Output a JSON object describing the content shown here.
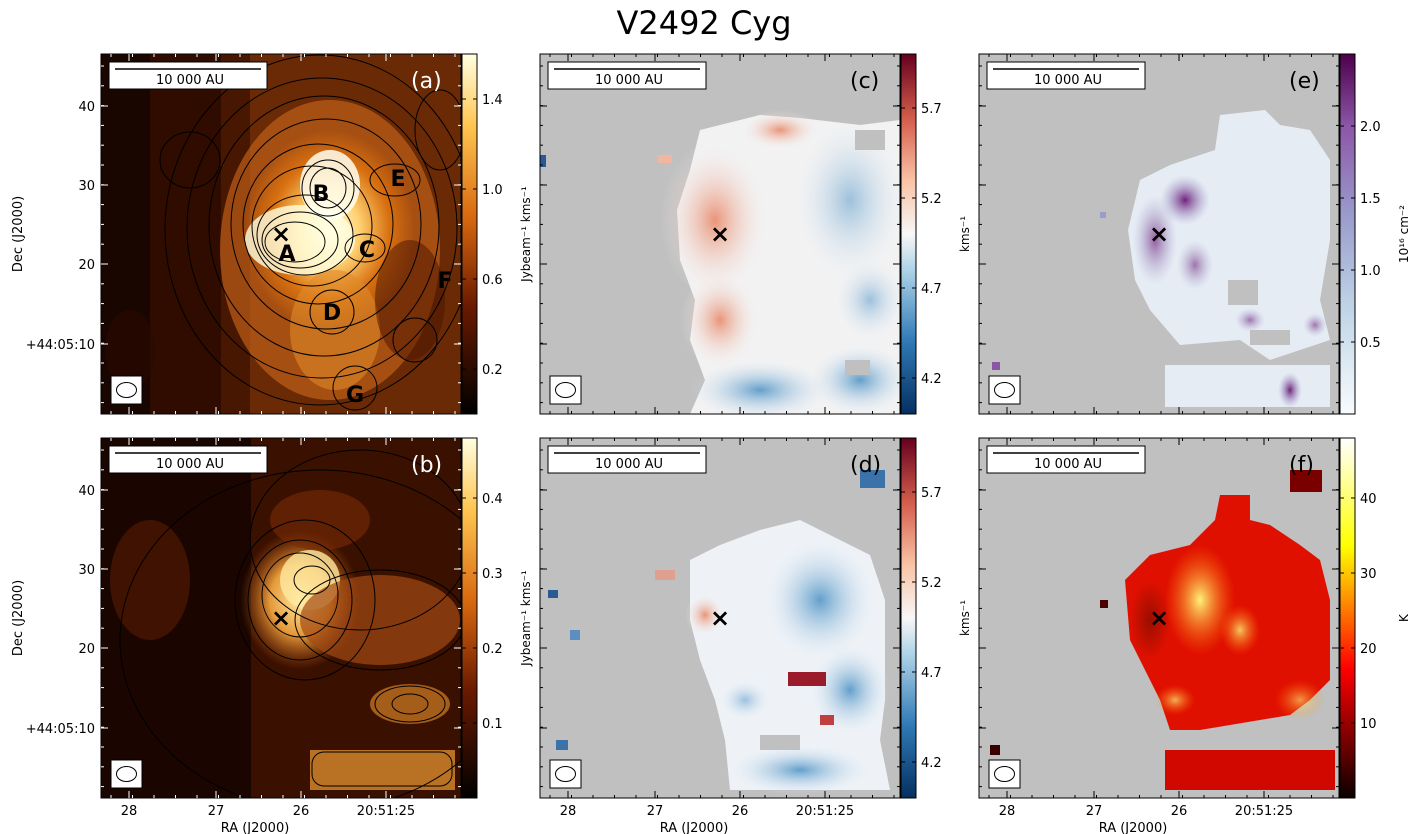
{
  "figure": {
    "title": "V2492 Cyg",
    "scale_bar_label": "10 000 AU",
    "source_marker": "×",
    "x_ticks": [
      "28",
      "27",
      "26",
      "20:51:25"
    ],
    "y_ticks": [
      "40",
      "30",
      "20",
      "+44:05:10"
    ],
    "xlabel": "RA (J2000)",
    "ylabel": "Dec (J2000)"
  },
  "chart_data": [
    {
      "type": "heatmap",
      "panel": "(a)",
      "colormap": "afmhot",
      "contours": true,
      "colorbar_label": "Jybeam⁻¹ kms⁻¹",
      "colorbar_ticks": [
        "0.2",
        "0.6",
        "1.0",
        "1.4"
      ],
      "colorbar_tick_values": [
        0.2,
        0.6,
        1.0,
        1.4
      ],
      "colorbar_range": [
        0.0,
        1.6
      ],
      "xlabel": "",
      "ylabel": "Dec (J2000)",
      "source_labels": [
        "A",
        "B",
        "C",
        "D",
        "E",
        "F",
        "G"
      ]
    },
    {
      "type": "heatmap",
      "panel": "(b)",
      "colormap": "afmhot",
      "contours": true,
      "colorbar_label": "Jybeam⁻¹ kms⁻¹",
      "colorbar_ticks": [
        "0.1",
        "0.2",
        "0.3",
        "0.4"
      ],
      "colorbar_tick_values": [
        0.1,
        0.2,
        0.3,
        0.4
      ],
      "colorbar_range": [
        0.0,
        0.48
      ],
      "xlabel": "RA (J2000)",
      "ylabel": "Dec (J2000)"
    },
    {
      "type": "heatmap",
      "panel": "(c)",
      "colormap": "RdBu_r",
      "colorbar_label": "kms⁻¹",
      "colorbar_ticks": [
        "4.2",
        "4.7",
        "5.2",
        "5.7"
      ],
      "colorbar_tick_values": [
        4.2,
        4.7,
        5.2,
        5.7
      ],
      "colorbar_range": [
        4.0,
        6.0
      ],
      "xlabel": "",
      "ylabel": ""
    },
    {
      "type": "heatmap",
      "panel": "(d)",
      "colormap": "RdBu_r",
      "colorbar_label": "kms⁻¹",
      "colorbar_ticks": [
        "4.2",
        "4.7",
        "5.2",
        "5.7"
      ],
      "colorbar_tick_values": [
        4.2,
        4.7,
        5.2,
        5.7
      ],
      "colorbar_range": [
        4.0,
        6.0
      ],
      "xlabel": "RA (J2000)",
      "ylabel": ""
    },
    {
      "type": "heatmap",
      "panel": "(e)",
      "colormap": "BuPu",
      "colorbar_label": "10¹⁶ cm⁻²",
      "colorbar_ticks": [
        "0.5",
        "1.0",
        "1.5",
        "2.0"
      ],
      "colorbar_tick_values": [
        0.5,
        1.0,
        1.5,
        2.0
      ],
      "colorbar_range": [
        0.0,
        2.5
      ],
      "xlabel": "",
      "ylabel": ""
    },
    {
      "type": "heatmap",
      "panel": "(f)",
      "colormap": "hot",
      "colorbar_label": "K",
      "colorbar_ticks": [
        "10",
        "20",
        "30",
        "40"
      ],
      "colorbar_tick_values": [
        10,
        20,
        30,
        40
      ],
      "colorbar_range": [
        0,
        48
      ],
      "xlabel": "RA (J2000)",
      "ylabel": ""
    }
  ]
}
